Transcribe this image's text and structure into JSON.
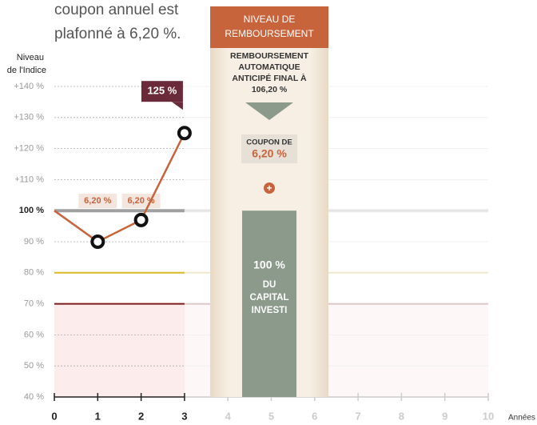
{
  "intro_text": [
    "coupon annuel est",
    "plafonné à 6,20 %."
  ],
  "chart_data": {
    "type": "line",
    "y_label": [
      "Niveau",
      "de l'Indice"
    ],
    "x_label": "Années",
    "x": [
      0,
      1,
      2,
      3
    ],
    "series": [
      {
        "color": "#c8643c",
        "values": [
          100,
          90,
          97,
          125
        ],
        "value_labels": [
          null,
          null,
          null,
          "125 %"
        ]
      }
    ],
    "xlim": [
      0,
      10
    ],
    "xticks": [
      0,
      1,
      2,
      3,
      4,
      5,
      6,
      7,
      8,
      9,
      10
    ],
    "ylim": [
      40,
      140
    ],
    "yticks": [
      {
        "value": 40,
        "label": "40 %"
      },
      {
        "value": 50,
        "label": "50 %"
      },
      {
        "value": 60,
        "label": "60 %"
      },
      {
        "value": 70,
        "label": "70 %"
      },
      {
        "value": 80,
        "label": "80 %"
      },
      {
        "value": 90,
        "label": "90 %"
      },
      {
        "value": 100,
        "label": "100 %"
      },
      {
        "value": 110,
        "label": "+110 %"
      },
      {
        "value": 120,
        "label": "+120 %"
      },
      {
        "value": 130,
        "label": "+130 %"
      },
      {
        "value": 140,
        "label": "+140 %"
      }
    ],
    "grid": true,
    "coupon_labels": {
      "x": [
        1,
        2
      ],
      "labels": [
        "6,20 %",
        "6,20 %"
      ]
    },
    "thresholds": [
      {
        "value": 100,
        "color": "#a0a0a0"
      },
      {
        "value": 80,
        "color": "#d9b92b"
      },
      {
        "value": 70,
        "color": "#7a1a1a"
      }
    ],
    "observed_until": 3,
    "panel": {
      "header": [
        "NIVEAU DE",
        "REMBOURSEMENT"
      ],
      "text": [
        "REMBOURSEMENT",
        "AUTOMATIQUE",
        "ANTICIPÉ FINAL À",
        "106,20 %"
      ],
      "coupon": [
        "COUPON DE",
        "6,20 %"
      ],
      "plus": "+",
      "bar": {
        "value": 100,
        "color": "#8b9a8b",
        "label": [
          "100 %",
          "DU",
          "CAPITAL",
          "INVESTI"
        ]
      }
    }
  }
}
